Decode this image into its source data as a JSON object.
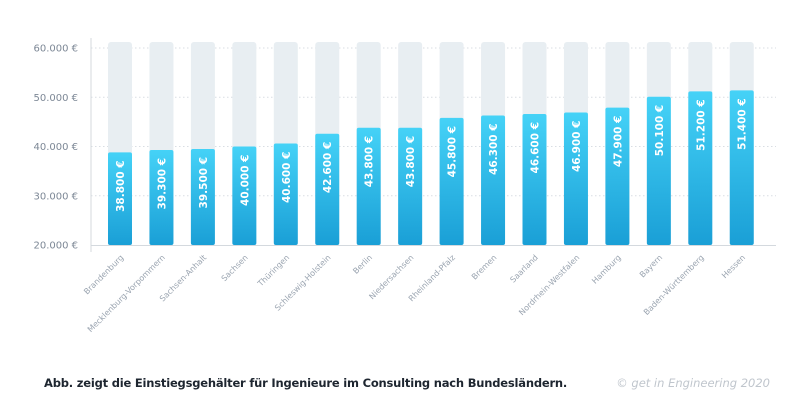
{
  "chart_data": {
    "type": "bar",
    "title": "",
    "xlabel": "",
    "ylabel": "",
    "ylim": [
      20000,
      60000
    ],
    "yticks": [
      20000,
      30000,
      40000,
      50000,
      60000
    ],
    "ytick_labels": [
      "20.000 €",
      "30.000 €",
      "40.000 €",
      "50.000 €",
      "60.000 €"
    ],
    "grid": true,
    "categories": [
      "Brandenburg",
      "Mecklenburg-Vorpommern",
      "Sachsen-Anhalt",
      "Sachsen",
      "Thüringen",
      "Schleswig-Holstein",
      "Berlin",
      "Niedersachsen",
      "Rheinland-Pfalz",
      "Bremen",
      "Saarland",
      "Nordrhein-Westfalen",
      "Hamburg",
      "Bayern",
      "Baden-Württemberg",
      "Hessen"
    ],
    "values": [
      38800,
      39300,
      39500,
      40000,
      40600,
      42600,
      43800,
      43800,
      45800,
      46300,
      46600,
      46900,
      47900,
      50100,
      51200,
      51400
    ],
    "value_labels": [
      "38.800 €",
      "39.300 €",
      "39.500 €",
      "40.000 €",
      "40.600 €",
      "42.600 €",
      "43.800 €",
      "43.800 €",
      "45.800 €",
      "46.300 €",
      "46.600 €",
      "46.900 €",
      "47.900 €",
      "50.100 €",
      "51.200 €",
      "51.400 €"
    ],
    "colors": {
      "bar_top": "#45d2f7",
      "bar_bottom": "#1a9fd6",
      "bar_background": "#e8eef2",
      "grid": "#d9dee3",
      "axis": "#d4d9de"
    }
  },
  "caption": "Abb. zeigt die Einstiegsgehälter für Ingenieure im Consulting nach Bundesländern.",
  "credit": "© get in Engineering 2020"
}
